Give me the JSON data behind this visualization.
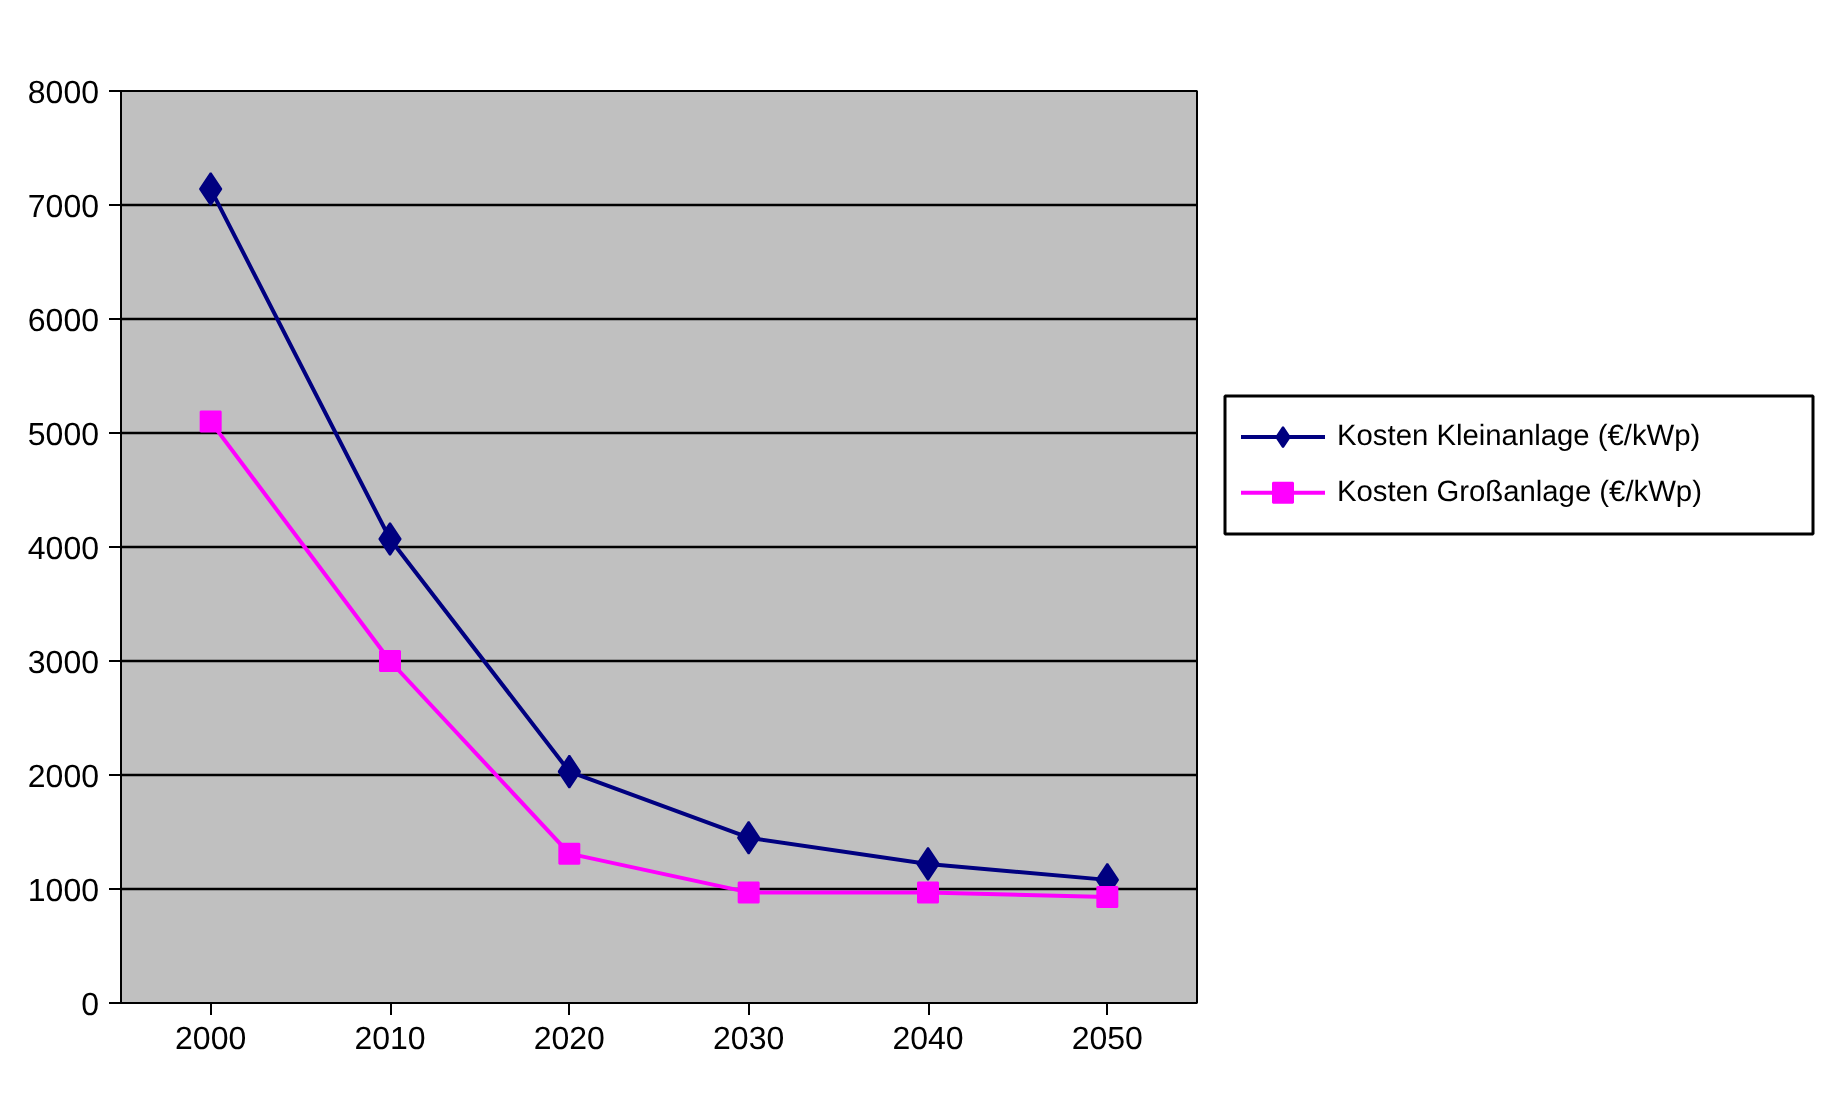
{
  "chart_data": {
    "type": "line",
    "categories": [
      "2000",
      "2010",
      "2020",
      "2030",
      "2040",
      "2050"
    ],
    "series": [
      {
        "name": "Kosten Kleinanlage (€/kWp)",
        "color": "#000080",
        "marker": "diamond",
        "values": [
          7140,
          4070,
          2030,
          1450,
          1220,
          1080
        ]
      },
      {
        "name": "Kosten Großanlage (€/kWp)",
        "color": "#ff00ff",
        "marker": "square",
        "values": [
          5100,
          3000,
          1310,
          970,
          970,
          930
        ]
      }
    ],
    "ylim": [
      0,
      8000
    ],
    "yticks": [
      0,
      1000,
      2000,
      3000,
      4000,
      5000,
      6000,
      7000,
      8000
    ],
    "grid": "y",
    "legend": "right",
    "line_style": "solid"
  }
}
